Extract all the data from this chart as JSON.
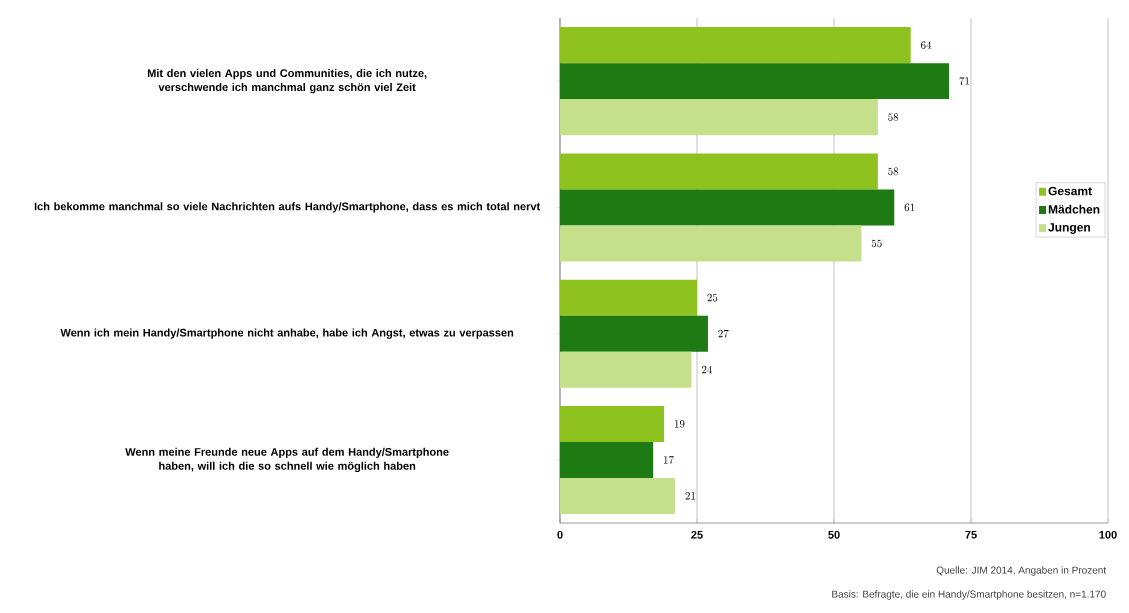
{
  "chart_data": {
    "type": "bar",
    "orientation": "horizontal",
    "categories": [
      "Mit den vielen Apps und Communities, die ich nutze, verschwende ich manchmal ganz schön viel Zeit",
      "Ich bekomme manchmal so viele Nachrichten aufs Handy/Smartphone, dass es mich total nervt",
      "Wenn ich mein Handy/Smartphone nicht anhabe, habe ich Angst, etwas zu verpassen",
      "Wenn meine Freunde neue Apps auf dem Handy/Smartphone haben, will ich die so schnell wie möglich haben"
    ],
    "series": [
      {
        "name": "Gesamt",
        "color": "#8dc21f",
        "values": [
          64,
          58,
          25,
          19
        ]
      },
      {
        "name": "Mädchen",
        "color": "#1e7a12",
        "values": [
          71,
          61,
          27,
          17
        ]
      },
      {
        "name": "Jungen",
        "color": "#c5e08a",
        "values": [
          58,
          55,
          24,
          21
        ]
      }
    ],
    "xlim": [
      0,
      100
    ],
    "xticks": [
      0,
      25,
      50,
      75,
      100
    ],
    "grid": "x",
    "legend": "right",
    "data_labels": true,
    "annotations": [
      "Quelle: JIM 2014, Angaben in Prozent",
      "Basis: Befragte, die ein Handy/Smartphone besitzen, n=1.170"
    ]
  }
}
